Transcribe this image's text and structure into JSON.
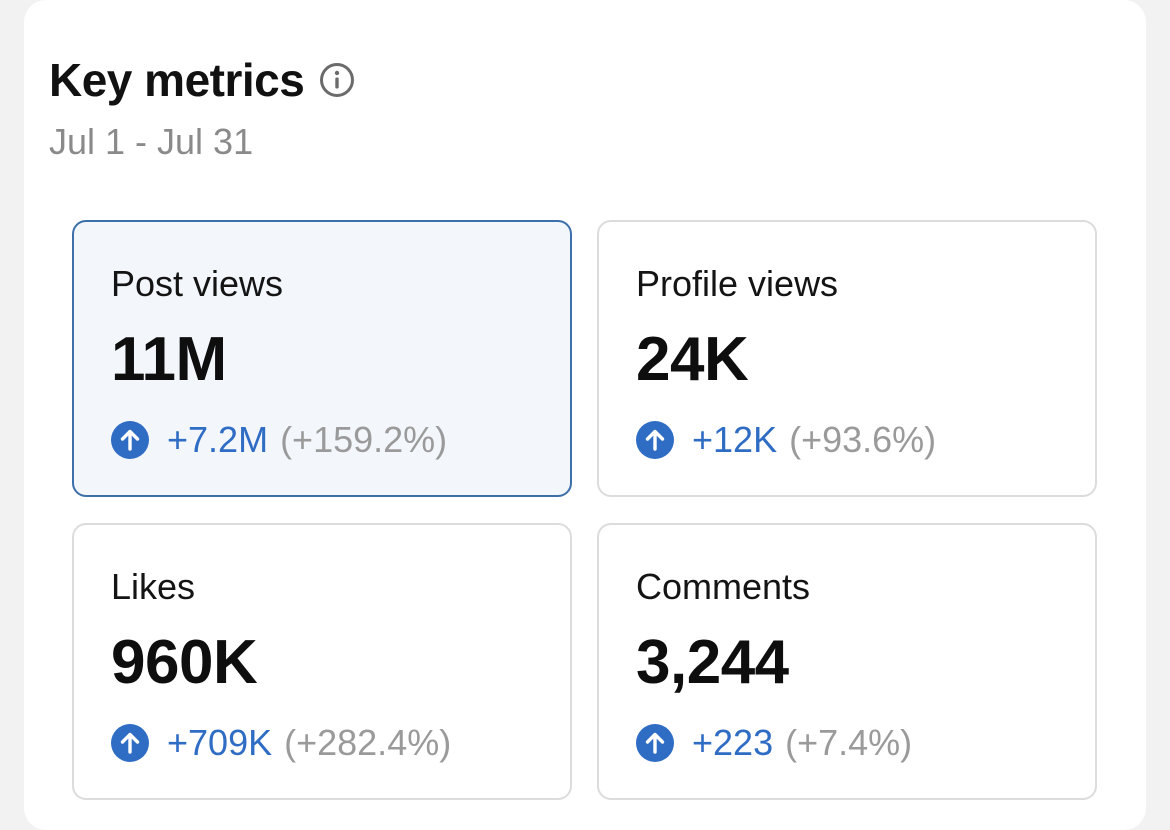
{
  "header": {
    "title": "Key metrics",
    "date_range": "Jul 1 - Jul 31"
  },
  "icons": {
    "info": "info-circle-icon",
    "trend_up": "arrow-up-circle-icon"
  },
  "colors": {
    "accent_blue": "#2f6cc4",
    "selected_border": "#3d6fa8",
    "selected_background": "#f3f7fc",
    "muted_text": "#9a9a9a"
  },
  "metrics": [
    {
      "label": "Post views",
      "value": "11M",
      "delta": "+7.2M",
      "percent": "(+159.2%)",
      "selected": true
    },
    {
      "label": "Profile views",
      "value": "24K",
      "delta": "+12K",
      "percent": "(+93.6%)",
      "selected": false
    },
    {
      "label": "Likes",
      "value": "960K",
      "delta": "+709K",
      "percent": "(+282.4%)",
      "selected": false
    },
    {
      "label": "Comments",
      "value": "3,244",
      "delta": "+223",
      "percent": "(+7.4%)",
      "selected": false
    }
  ]
}
